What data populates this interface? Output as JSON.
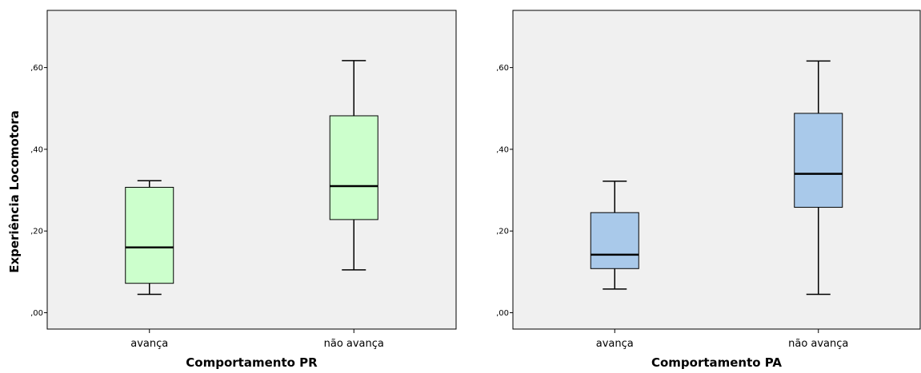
{
  "chart_data": [
    {
      "type": "boxplot",
      "xlabel": "Comportamento PR",
      "ylabel": "Experiência Locomotora",
      "ylim": [
        -0.04,
        0.74
      ],
      "yticks": [
        0.0,
        0.2,
        0.4,
        0.6
      ],
      "ytick_labels": [
        ",00",
        ",20",
        ",40",
        ",60"
      ],
      "grid": false,
      "box_color": "#ccffcc",
      "plot_background": "#f0f0f0",
      "categories": [
        "avança",
        "não avança"
      ],
      "boxes": [
        {
          "category": "avança",
          "whisker_low": 0.045,
          "q1": 0.072,
          "median": 0.16,
          "q3": 0.307,
          "whisker_high": 0.323
        },
        {
          "category": "não avança",
          "whisker_low": 0.105,
          "q1": 0.228,
          "median": 0.31,
          "q3": 0.482,
          "whisker_high": 0.617
        }
      ]
    },
    {
      "type": "boxplot",
      "xlabel": "Comportamento PA",
      "ylabel": "",
      "ylim": [
        -0.04,
        0.74
      ],
      "yticks": [
        0.0,
        0.2,
        0.4,
        0.6
      ],
      "ytick_labels": [
        ",00",
        ",20",
        ",40",
        ",60"
      ],
      "grid": false,
      "box_color": "#a9c9ea",
      "plot_background": "#f0f0f0",
      "categories": [
        "avança",
        "não avança"
      ],
      "boxes": [
        {
          "category": "avança",
          "whisker_low": 0.058,
          "q1": 0.108,
          "median": 0.142,
          "q3": 0.245,
          "whisker_high": 0.322
        },
        {
          "category": "não avança",
          "whisker_low": 0.045,
          "q1": 0.258,
          "median": 0.34,
          "q3": 0.488,
          "whisker_high": 0.616
        }
      ]
    }
  ]
}
